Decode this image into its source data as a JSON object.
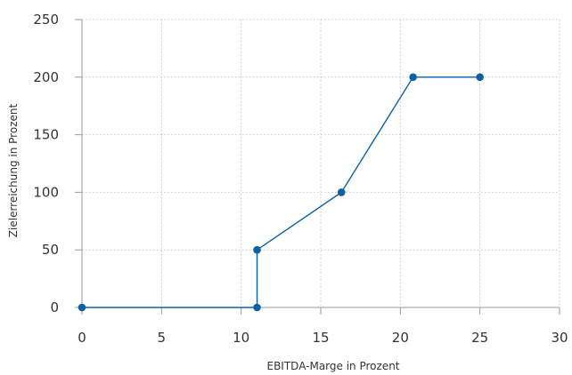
{
  "chart_data": {
    "type": "line",
    "title": "",
    "xlabel": "EBITDA-Marge in Prozent",
    "ylabel": "Zielerreichung in Prozent",
    "xlim": [
      0,
      30
    ],
    "ylim": [
      0,
      250
    ],
    "x_ticks": [
      0,
      5,
      10,
      15,
      20,
      25,
      30
    ],
    "y_ticks": [
      0,
      50,
      100,
      150,
      200,
      250
    ],
    "grid": true,
    "legend": "none",
    "colors": {
      "series": "#0b61a4",
      "grid": "#b8b8b8",
      "axis": "#9a9a9a",
      "text": "#333333"
    },
    "series": [
      {
        "x": [
          0,
          11,
          11,
          16.3,
          20.8,
          25
        ],
        "y": [
          0,
          0,
          50,
          100,
          200,
          200
        ]
      }
    ]
  }
}
